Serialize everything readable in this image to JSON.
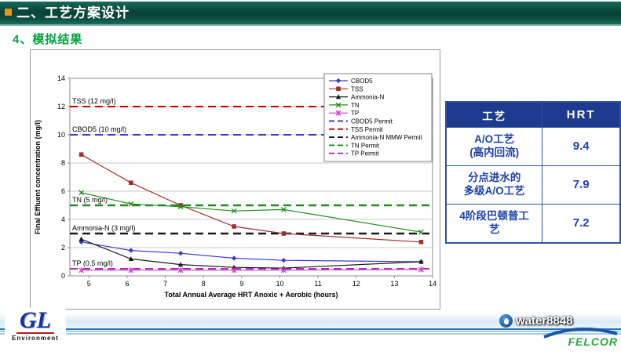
{
  "header": {
    "title": "二、工艺方案设计"
  },
  "subtitle": "4、模拟结果",
  "chart_data": {
    "type": "line",
    "title": "",
    "xlabel": "Total Annual Average HRT Anoxic + Aerobic (hours)",
    "ylabel": "Final Effluent concentration (mg/l)",
    "xlim": [
      4.5,
      14
    ],
    "ylim": [
      0,
      14
    ],
    "xticks": [
      5,
      6,
      7,
      8,
      9,
      10,
      11,
      12,
      13,
      14
    ],
    "yticks": [
      0,
      2,
      4,
      6,
      8,
      10,
      12,
      14
    ],
    "grid": "horizontal",
    "legend_position": "top-right-inside",
    "x": [
      4.8,
      6.1,
      7.4,
      8.8,
      10.1,
      13.7
    ],
    "series": [
      {
        "name": "CBOD5",
        "color": "#3a3ad0",
        "marker": "diamond",
        "values": [
          2.4,
          1.8,
          1.6,
          1.25,
          1.1,
          1.0
        ]
      },
      {
        "name": "TSS",
        "color": "#a03030",
        "marker": "square",
        "values": [
          8.6,
          6.6,
          5.0,
          3.5,
          3.0,
          2.4
        ]
      },
      {
        "name": "Ammonia-N",
        "color": "#1a1a1a",
        "marker": "triangle",
        "values": [
          2.6,
          1.2,
          0.8,
          0.6,
          0.55,
          1.0
        ]
      },
      {
        "name": "TN",
        "color": "#1e8c1e",
        "marker": "x",
        "values": [
          5.9,
          5.1,
          4.9,
          4.6,
          4.7,
          3.1
        ]
      },
      {
        "name": "TP",
        "color": "#cc44cc",
        "marker": "star",
        "values": [
          0.4,
          0.4,
          0.4,
          0.4,
          0.4,
          0.45
        ]
      }
    ],
    "permit_lines": [
      {
        "name": "CBOD5 Permit",
        "value": 10,
        "color": "#3a3ad0",
        "label": "CBOD5 (10 mg/l)"
      },
      {
        "name": "TSS Permit",
        "value": 12,
        "color": "#c00000",
        "label": "TSS (12 mg/l)"
      },
      {
        "name": "Ammonia-N MMW Permit",
        "value": 3,
        "color": "#1a1a1a",
        "label": "Ammonia-N (3 mg/l)"
      },
      {
        "name": "TN Permit",
        "value": 5,
        "color": "#1e8c1e",
        "label": "TN (5 mg/l)"
      },
      {
        "name": "TP Permit",
        "value": 0.5,
        "color": "#b030b0",
        "label": "TP (0.5 mg/l)"
      }
    ],
    "legend": [
      "CBOD5",
      "TSS",
      "Ammonia-N",
      "TN",
      "TP",
      "CBOD5 Permit",
      "TSS Permit",
      "Ammonia-N MMW Permit",
      "TN Permit",
      "TP Permit"
    ]
  },
  "table": {
    "headers": [
      "工艺",
      "HRT"
    ],
    "rows": [
      {
        "process": "A/O工艺\n(高内回流)",
        "hrt": "9.4"
      },
      {
        "process": "分点进水的\n多级A/O工艺",
        "hrt": "7.9"
      },
      {
        "process": "4阶段巴顿普工\n艺",
        "hrt": "7.2"
      }
    ]
  },
  "footer": {
    "logo_main": "GL",
    "logo_sub": "Environment",
    "watermark": "water8848",
    "logo_right": "FELCOR"
  }
}
